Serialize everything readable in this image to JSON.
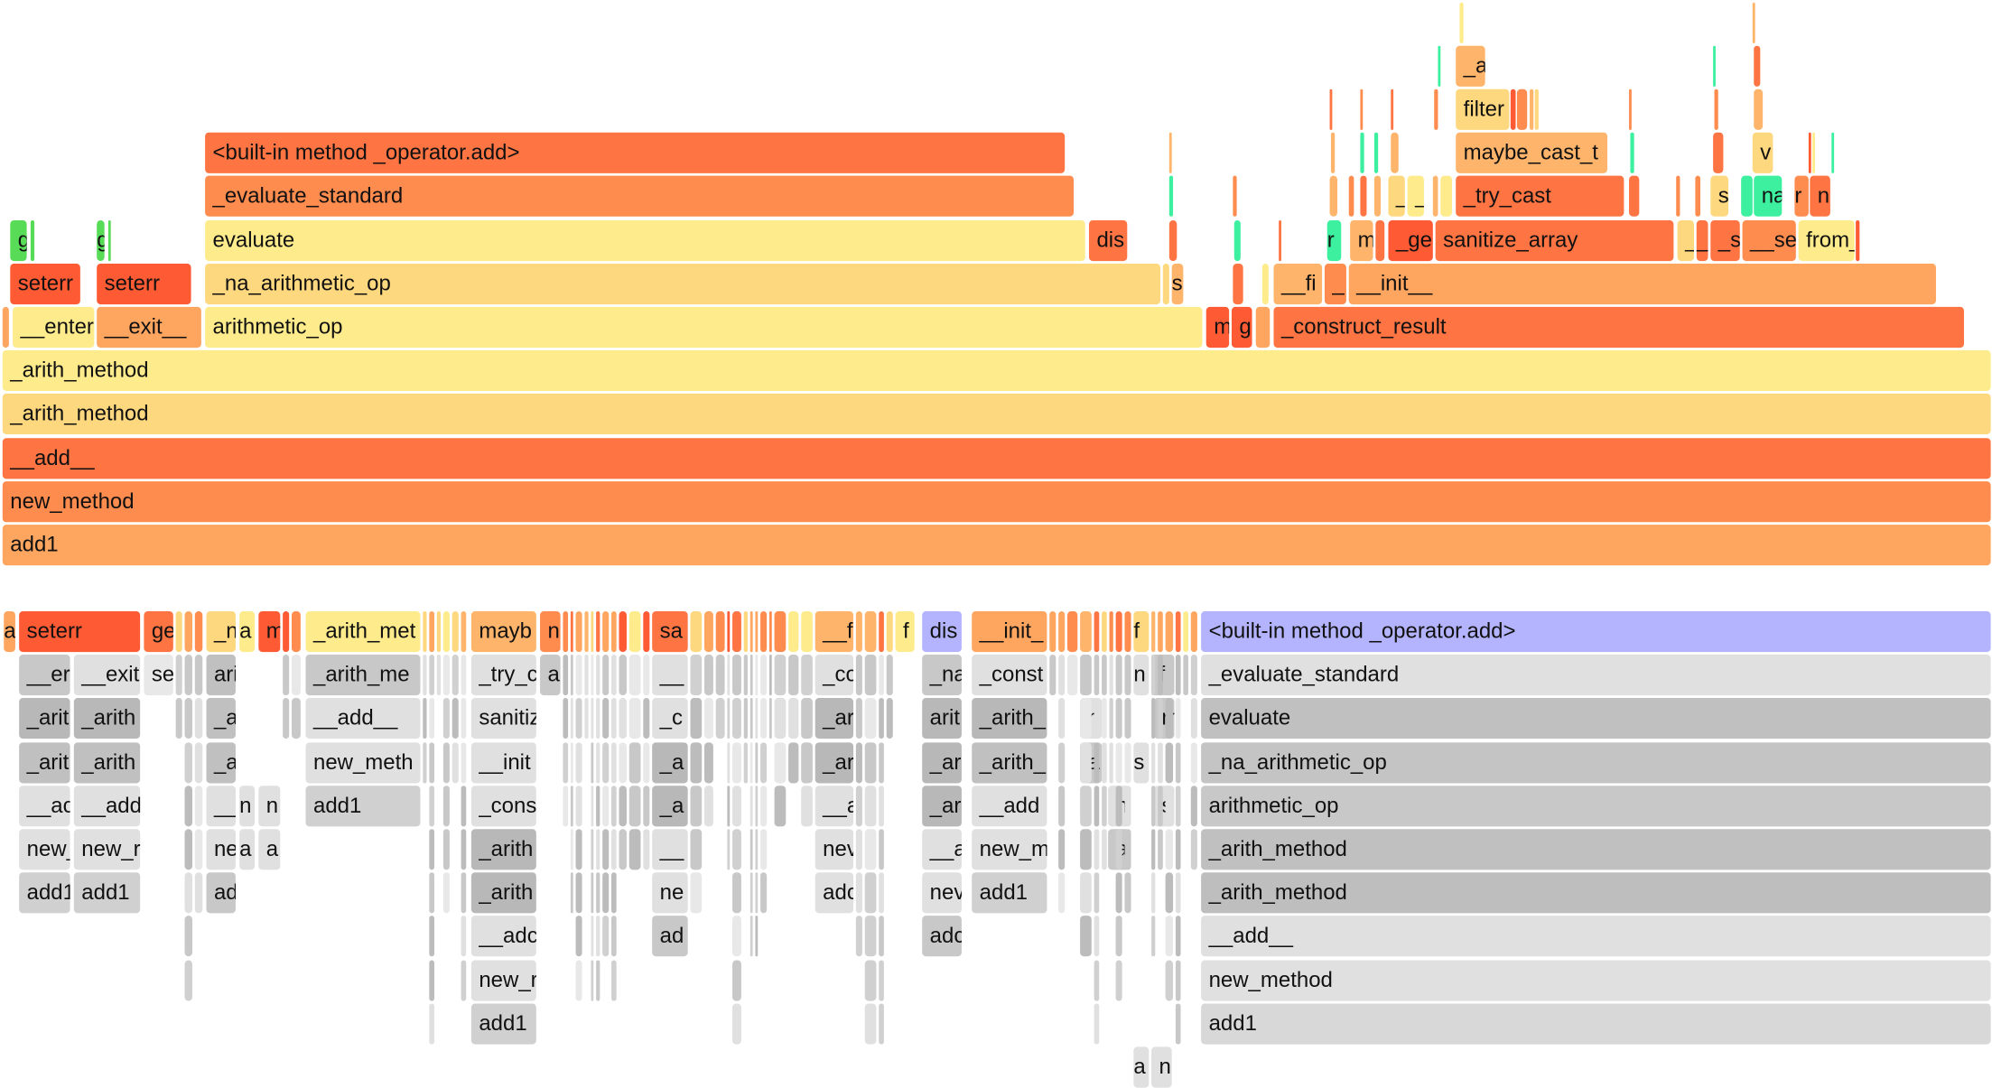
{
  "colors": {
    "highlight": "#b4b4fe",
    "hot": "#fe5a33",
    "warm": "#fe7443",
    "cool": "#3df0a0",
    "green": "#58dc58",
    "gray": "#e0e0e0"
  },
  "flame": {
    "frames": [
      {
        "name": "add1",
        "color": "#fea55f"
      },
      {
        "name": "new_method",
        "color": "#fe8c4f"
      },
      {
        "name": "__add__",
        "color": "#fe7443"
      },
      {
        "name": "_arith_method",
        "color": "#fed87e"
      },
      {
        "name": "_arith_method",
        "color": "#feec8c"
      },
      {
        "name": "__enter",
        "color": "#feec8c"
      },
      {
        "name": "__exit__",
        "color": "#fea55f"
      },
      {
        "name": "arithmetic_op",
        "color": "#feec8c"
      },
      {
        "name": "m",
        "color": "#fe5a33"
      },
      {
        "name": "g",
        "color": "#fe5a33"
      },
      {
        "name": "_construct_result",
        "color": "#fe7443"
      },
      {
        "name": "seterr",
        "color": "#fe5a33"
      },
      {
        "name": "seterr",
        "color": "#fe5a33"
      },
      {
        "name": "_na_arithmetic_op",
        "color": "#fed87e"
      },
      {
        "name": "s",
        "color": "#feb46a"
      },
      {
        "name": "__fi",
        "color": "#feb46a"
      },
      {
        "name": "_",
        "color": "#fe8c4f"
      },
      {
        "name": "__init__",
        "color": "#fea55f"
      },
      {
        "name": "g",
        "color": "#58dc58"
      },
      {
        "name": "g",
        "color": "#58dc58"
      },
      {
        "name": "evaluate",
        "color": "#feec8c"
      },
      {
        "name": "dis",
        "color": "#fe7443"
      },
      {
        "name": "r",
        "color": "#3df0a0"
      },
      {
        "name": "m",
        "color": "#feb46a"
      },
      {
        "name": "_ge",
        "color": "#fe5a33"
      },
      {
        "name": "sanitize_array",
        "color": "#fe7443"
      },
      {
        "name": "_",
        "color": "#fed87e"
      },
      {
        "name": "_",
        "color": "#fe7443"
      },
      {
        "name": "_s",
        "color": "#fe7443"
      },
      {
        "name": "__se",
        "color": "#fe8c4f"
      },
      {
        "name": "from_",
        "color": "#feec8c"
      },
      {
        "name": "_evaluate_standard",
        "color": "#fe8c4f"
      },
      {
        "name": "_",
        "color": "#fed87e"
      },
      {
        "name": "_",
        "color": "#feec8c"
      },
      {
        "name": "_try_cast",
        "color": "#fe7443"
      },
      {
        "name": "s",
        "color": "#fed87e"
      },
      {
        "name": "na",
        "color": "#3df0a0"
      },
      {
        "name": "r",
        "color": "#fe8c4f"
      },
      {
        "name": "n",
        "color": "#fe7443"
      },
      {
        "name": "<built-in method _operator.add>",
        "color": "#fe7443"
      },
      {
        "name": "maybe_cast_t",
        "color": "#feb46a"
      },
      {
        "name": "v",
        "color": "#fed87e"
      },
      {
        "name": "filter",
        "color": "#fed87e"
      },
      {
        "name": "_a",
        "color": "#feb46a"
      }
    ]
  },
  "icicle": {
    "frames": [
      {
        "name": "a",
        "color": "#fea55f"
      },
      {
        "name": "seterr",
        "color": "#fe5a33"
      },
      {
        "name": "ge",
        "color": "#fe7443"
      },
      {
        "name": "_n",
        "color": "#fed87e"
      },
      {
        "name": "a",
        "color": "#feec8c"
      },
      {
        "name": "m",
        "color": "#fe5a33"
      },
      {
        "name": "_arith_met",
        "color": "#feec8c"
      },
      {
        "name": "mayb",
        "color": "#feb46a"
      },
      {
        "name": "n",
        "color": "#fe8c4f"
      },
      {
        "name": "sa",
        "color": "#fe7443"
      },
      {
        "name": "__f",
        "color": "#feb46a"
      },
      {
        "name": "f",
        "color": "#feec8c"
      },
      {
        "name": "dis",
        "color": "#b4b4fe"
      },
      {
        "name": "__init_",
        "color": "#fea55f"
      },
      {
        "name": "f",
        "color": "#fed87e"
      },
      {
        "name": "<built-in method _operator.add>",
        "color": "#b4b4fe"
      },
      {
        "name": "__er",
        "color": "#c8c8c8"
      },
      {
        "name": "__exit",
        "color": "#e0e0e0"
      },
      {
        "name": "se",
        "color": "#e8e8e8"
      },
      {
        "name": "ari",
        "color": "#c0c0c0"
      },
      {
        "name": "_arith_me",
        "color": "#c8c8c8"
      },
      {
        "name": "_try_c",
        "color": "#e0e0e0"
      },
      {
        "name": "a",
        "color": "#c8c8c8"
      },
      {
        "name": "__",
        "color": "#e0e0e0"
      },
      {
        "name": "_co",
        "color": "#e0e0e0"
      },
      {
        "name": "_na",
        "color": "#c8c8c8"
      },
      {
        "name": "_const",
        "color": "#e0e0e0"
      },
      {
        "name": "n",
        "color": "#e0e0e0"
      },
      {
        "name": "fi",
        "color": "#c8c8c8"
      },
      {
        "name": "_evaluate_standard",
        "color": "#e0e0e0"
      },
      {
        "name": "_arit",
        "color": "#b8b8b8"
      },
      {
        "name": "_arith",
        "color": "#b8b8b8"
      },
      {
        "name": "_a",
        "color": "#c0c0c0"
      },
      {
        "name": "__add__",
        "color": "#e0e0e0"
      },
      {
        "name": "sanitiz",
        "color": "#e0e0e0"
      },
      {
        "name": "_c",
        "color": "#e0e0e0"
      },
      {
        "name": "_ar",
        "color": "#b8b8b8"
      },
      {
        "name": "arit",
        "color": "#b8b8b8"
      },
      {
        "name": "_arith_",
        "color": "#b8b8b8"
      },
      {
        "name": "n",
        "color": "#e0e0e0"
      },
      {
        "name": "m",
        "color": "#c8c8c8"
      },
      {
        "name": "evaluate",
        "color": "#c0c0c0"
      },
      {
        "name": "_arit",
        "color": "#c0c0c0"
      },
      {
        "name": "_arith",
        "color": "#c0c0c0"
      },
      {
        "name": "_a",
        "color": "#c0c0c0"
      },
      {
        "name": "new_meth",
        "color": "#e0e0e0"
      },
      {
        "name": "__init",
        "color": "#e0e0e0"
      },
      {
        "name": "_a",
        "color": "#b8b8b8"
      },
      {
        "name": "_ar",
        "color": "#b8b8b8"
      },
      {
        "name": "_ar",
        "color": "#b8b8b8"
      },
      {
        "name": "_arith_",
        "color": "#c0c0c0"
      },
      {
        "name": "a",
        "color": "#c8c8c8"
      },
      {
        "name": "s",
        "color": "#e0e0e0"
      },
      {
        "name": "_na_arithmetic_op",
        "color": "#c4c4c4"
      },
      {
        "name": "__ac",
        "color": "#e0e0e0"
      },
      {
        "name": "__add",
        "color": "#e0e0e0"
      },
      {
        "name": "__",
        "color": "#e0e0e0"
      },
      {
        "name": "n",
        "color": "#e0e0e0"
      },
      {
        "name": "n",
        "color": "#e0e0e0"
      },
      {
        "name": "add1",
        "color": "#d0d0d0"
      },
      {
        "name": "_cons",
        "color": "#e0e0e0"
      },
      {
        "name": "_a",
        "color": "#b8b8b8"
      },
      {
        "name": "__a",
        "color": "#e0e0e0"
      },
      {
        "name": "_ar",
        "color": "#b8b8b8"
      },
      {
        "name": "__add",
        "color": "#e0e0e0"
      },
      {
        "name": "n",
        "color": "#e0e0e0"
      },
      {
        "name": "s",
        "color": "#e0e0e0"
      },
      {
        "name": "arithmetic_op",
        "color": "#c8c8c8"
      },
      {
        "name": "new_",
        "color": "#e0e0e0"
      },
      {
        "name": "new_r",
        "color": "#e0e0e0"
      },
      {
        "name": "ne",
        "color": "#e0e0e0"
      },
      {
        "name": "a",
        "color": "#e0e0e0"
      },
      {
        "name": "a",
        "color": "#e0e0e0"
      },
      {
        "name": "_arith",
        "color": "#b8b8b8"
      },
      {
        "name": "__",
        "color": "#e0e0e0"
      },
      {
        "name": "nev",
        "color": "#e0e0e0"
      },
      {
        "name": "__a",
        "color": "#e0e0e0"
      },
      {
        "name": "new_m",
        "color": "#e0e0e0"
      },
      {
        "name": "a",
        "color": "#c8c8c8"
      },
      {
        "name": "_arith_method",
        "color": "#c0c0c0"
      },
      {
        "name": "add1",
        "color": "#d0d0d0"
      },
      {
        "name": "add1",
        "color": "#d0d0d0"
      },
      {
        "name": "ad",
        "color": "#c8c8c8"
      },
      {
        "name": "_arith",
        "color": "#b8b8b8"
      },
      {
        "name": "ne",
        "color": "#e0e0e0"
      },
      {
        "name": "adc",
        "color": "#e0e0e0"
      },
      {
        "name": "nev",
        "color": "#e0e0e0"
      },
      {
        "name": "add1",
        "color": "#d0d0d0"
      },
      {
        "name": "_arith_method",
        "color": "#bebebe"
      },
      {
        "name": "__adc",
        "color": "#e0e0e0"
      },
      {
        "name": "ad",
        "color": "#c8c8c8"
      },
      {
        "name": "adc",
        "color": "#c8c8c8"
      },
      {
        "name": "__add__",
        "color": "#e0e0e0"
      },
      {
        "name": "new_r",
        "color": "#e0e0e0"
      },
      {
        "name": "new_method",
        "color": "#e0e0e0"
      },
      {
        "name": "add1",
        "color": "#d0d0d0"
      },
      {
        "name": "add1",
        "color": "#d8d8d8"
      },
      {
        "name": "a",
        "color": "#e0e0e0"
      },
      {
        "name": "n",
        "color": "#e0e0e0"
      }
    ]
  }
}
